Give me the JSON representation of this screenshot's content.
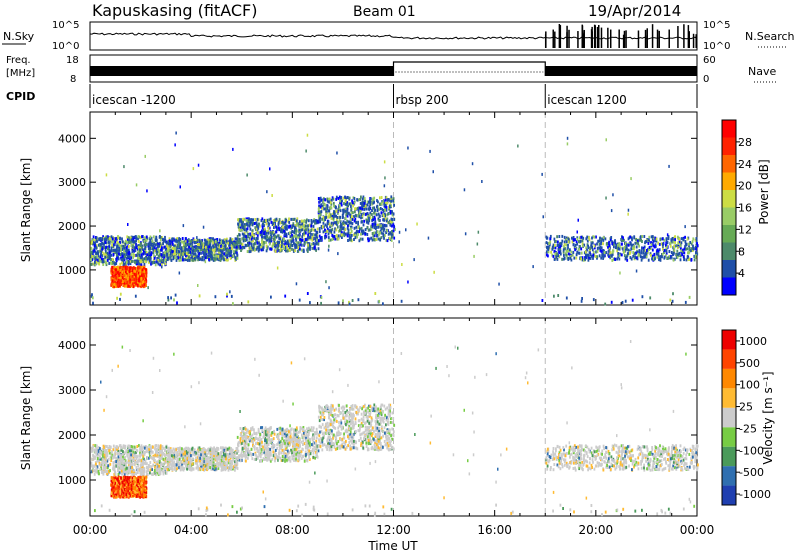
{
  "header": {
    "station": "Kapuskasing (fitACF)",
    "beam": "Beam 01",
    "date": "19/Apr/2014"
  },
  "strips": {
    "nsky_label": "N.Sky",
    "nsky_ticks": [
      "10^5",
      "10^0"
    ],
    "nsearch_label": "N.Search",
    "nsearch_ticks": [
      "10^5",
      "10^0"
    ],
    "freq_label": "Freq.",
    "freq_unit": "[MHz]",
    "freq_ticks": [
      "18",
      "8"
    ],
    "nave_label": "Nave",
    "nave_ticks": [
      "60",
      "0"
    ],
    "cpid_label": "CPID",
    "cpid_segments": [
      {
        "label": "icescan -1200",
        "start": 0,
        "end": 12
      },
      {
        "label": "rbsp 200",
        "start": 12,
        "end": 18
      },
      {
        "label": "icescan 1200",
        "start": 18,
        "end": 24
      }
    ]
  },
  "chart_data": [
    {
      "type": "heatmap",
      "title": "Power",
      "xlabel": "Time UT",
      "ylabel": "Slant Range [km]",
      "xlim": [
        0,
        24
      ],
      "ylim": [
        200,
        4600
      ],
      "x_ticks": [
        "00:00",
        "04:00",
        "08:00",
        "12:00",
        "16:00",
        "20:00",
        "00:00"
      ],
      "y_ticks": [
        "1000",
        "2000",
        "3000",
        "4000"
      ],
      "colorbar": {
        "label": "Power [dB]",
        "ticks": [
          "4",
          "8",
          "12",
          "16",
          "20",
          "24",
          "28"
        ],
        "colors": [
          "#0000ff",
          "#1f4fa8",
          "#4d8a6a",
          "#66aa55",
          "#99cc66",
          "#ccdd44",
          "#ffaa00",
          "#ff6600",
          "#ff2200",
          "#ff0000"
        ]
      },
      "cpid_boundaries_hours": [
        12,
        18
      ],
      "scatter_bands": [
        {
          "from_hour": 0,
          "to_hour": 3,
          "range_km": [
            1200,
            1800
          ],
          "level": "low"
        },
        {
          "from_hour": 1,
          "to_hour": 2,
          "range_km": [
            700,
            1100
          ],
          "level": "high"
        },
        {
          "from_hour": 3,
          "to_hour": 6,
          "range_km": [
            1300,
            1700
          ],
          "level": "mid"
        },
        {
          "from_hour": 6,
          "to_hour": 12,
          "range_km": [
            1600,
            2500
          ],
          "level": "mid"
        },
        {
          "from_hour": 18,
          "to_hour": 24,
          "range_km": [
            1300,
            1700
          ],
          "level": "mid"
        }
      ]
    },
    {
      "type": "heatmap",
      "title": "Velocity",
      "xlabel": "Time UT",
      "ylabel": "Slant Range [km]",
      "xlim": [
        0,
        24
      ],
      "ylim": [
        200,
        4600
      ],
      "x_ticks": [
        "00:00",
        "04:00",
        "08:00",
        "12:00",
        "16:00",
        "20:00",
        "00:00"
      ],
      "y_ticks": [
        "1000",
        "2000",
        "3000",
        "4000"
      ],
      "colorbar": {
        "label": "Velocity [m s⁻¹]",
        "ticks": [
          "1000",
          "500",
          "100",
          "25",
          "-25",
          "-100",
          "-500",
          "-1000"
        ],
        "colors": [
          "#1f3fb0",
          "#2f6fb0",
          "#4a9a5a",
          "#77cc44",
          "#cccccc",
          "#ffbb33",
          "#ff8800",
          "#ff4400",
          "#ee0000"
        ]
      },
      "cpid_boundaries_hours": [
        12,
        18
      ]
    }
  ],
  "xaxis_label": "Time UT"
}
